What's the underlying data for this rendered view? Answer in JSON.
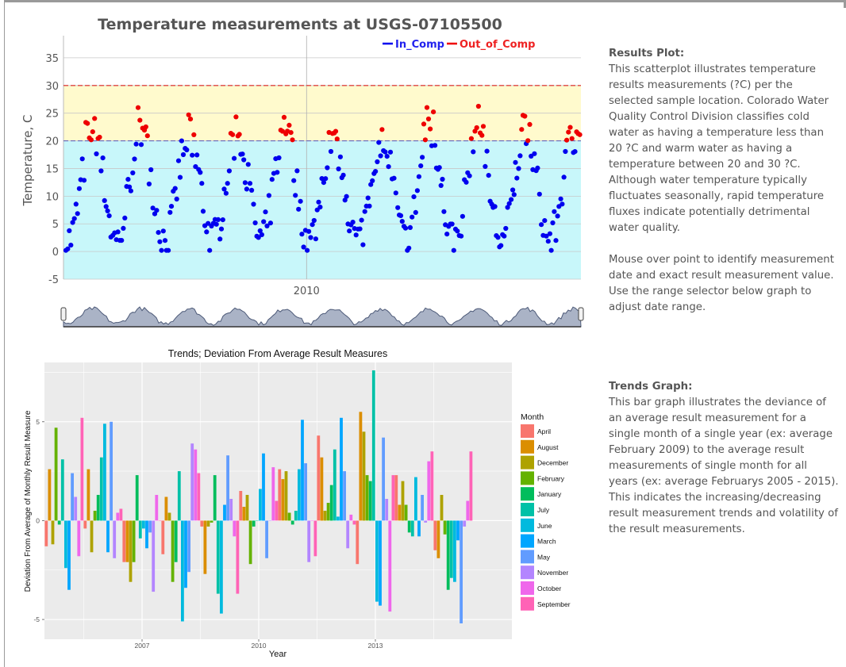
{
  "colors": {
    "in_comp": "#0000ee",
    "out_of_comp": "#ee0000",
    "warm_band": "#fffacd",
    "cold_band": "#c8f7fa",
    "threshold_line_red": "#dd2222",
    "threshold_line_blue": "#6666bb",
    "trend_panel_bg": "#ebebeb",
    "months": {
      "April": "#f8766d",
      "August": "#db8e00",
      "December": "#aea200",
      "February": "#64b200",
      "January": "#00bd5c",
      "July": "#00c1a7",
      "June": "#00bade",
      "March": "#00a6ff",
      "May": "#619cff",
      "November": "#b385ff",
      "October": "#ef67eb",
      "September": "#ff63b6"
    }
  },
  "results_panel": {
    "heading": "Results Plot:",
    "paragraph1": "This scatterplot illustrates temperature results measurements (?C) per the selected sample location. Colorado Water Quality Control Division classifies cold water as having a temperature less than 20 ?C and warm water as having a temperature between 20 and 30 ?C. Although water temperature typically fluctuates seasonally, rapid temperature fluxes indicate potentially detrimental water quality.",
    "paragraph2": "Mouse over point to identify measurement date and exact result measurement value. Use the range selector below graph to adjust date range."
  },
  "trends_panel": {
    "heading": "Trends Graph:",
    "paragraph1": "This bar graph illustrates the deviance of an average result measurement for a single month of a single year (ex: average February 2009) to the average result measurements of single month for all years (ex: average Februarys 2005 - 2015). This indicates the increasing/decreasing result measurement trends and volatility of the result measurements."
  },
  "chart_data": [
    {
      "type": "scatter",
      "title": "Temperature measurements at USGS-07105500",
      "ylabel": "Temperature, C",
      "xlabel": "",
      "ylim": [
        -5,
        39
      ],
      "yticks": [
        -5,
        0,
        5,
        10,
        15,
        20,
        25,
        30,
        35
      ],
      "xticks": [
        {
          "label": "2010",
          "value": 2010.0
        }
      ],
      "xrange": [
        2004.95,
        2015.7
      ],
      "legend": [
        "In_Comp",
        "Out_of_Comp"
      ],
      "legend_position": "top-right",
      "thresholds": [
        20,
        30
      ],
      "range_selector": true,
      "series": [
        {
          "name": "In_Comp"
        },
        {
          "name": "Out_of_Comp"
        }
      ]
    },
    {
      "type": "bar",
      "title": "Trends; Deviation From Average Result Measures",
      "xlabel": "Year",
      "ylabel": "Deviation From Average of Monthly Result Measure",
      "ylim": [
        -6,
        8
      ],
      "yticks": [
        -5,
        0,
        5
      ],
      "xticks": [
        {
          "label": "2007",
          "value": 2007
        },
        {
          "label": "2010",
          "value": 2010
        },
        {
          "label": "2013",
          "value": 2013
        }
      ],
      "legend_title": "Month",
      "legend_position": "right",
      "month_order": [
        "April",
        "August",
        "December",
        "February",
        "January",
        "July",
        "June",
        "March",
        "May",
        "November",
        "October",
        "September"
      ],
      "groups": [
        {
          "year": 2005.0,
          "values": {
            "April": -1.3,
            "August": 2.6,
            "December": -1.2,
            "February": 4.7,
            "January": -0.2,
            "July": 3.1,
            "June": -2.4,
            "March": -3.5,
            "May": 2.4,
            "November": 1.2,
            "October": -1.8,
            "September": 5.2
          }
        },
        {
          "year": 2006.0,
          "values": {
            "April": -0.4,
            "August": 2.6,
            "December": -1.6,
            "February": 0.5,
            "January": 1.3,
            "July": 3.2,
            "June": 4.9,
            "March": -1.6,
            "May": 5.0,
            "November": -1.9,
            "October": 0.4,
            "September": 0.6
          }
        },
        {
          "year": 2007.0,
          "values": {
            "April": -2.1,
            "August": -2.1,
            "December": -3.1,
            "February": -2.1,
            "January": 2.3,
            "July": -0.9,
            "June": -0.4,
            "March": -1.4,
            "May": -0.6,
            "November": -3.6,
            "October": 1.3,
            "September": 0.0
          }
        },
        {
          "year": 2008.0,
          "values": {
            "April": -1.7,
            "August": 1.2,
            "December": 0.4,
            "February": -3.1,
            "January": -2.1,
            "July": 2.5,
            "June": -5.1,
            "March": -3.4,
            "May": -2.6,
            "November": 3.9,
            "October": 3.6,
            "September": 2.4
          }
        },
        {
          "year": 2009.0,
          "values": {
            "April": -0.3,
            "August": -2.7,
            "December": -0.3,
            "February": -0.1,
            "January": 2.3,
            "July": -3.7,
            "June": -4.7,
            "March": 0.8,
            "May": 3.3,
            "November": 1.1,
            "October": -0.8,
            "September": -3.7
          }
        },
        {
          "year": 2010.0,
          "values": {
            "April": 1.5,
            "August": 0.7,
            "December": 1.3,
            "February": -2.2,
            "January": -0.3,
            "July": 0.0,
            "June": 1.6,
            "March": 3.4,
            "May": -1.9,
            "November": 0.0,
            "October": 2.7,
            "September": 1.0
          }
        },
        {
          "year": 2011.0,
          "values": {
            "April": 2.6,
            "August": 2.1,
            "December": 2.5,
            "February": 0.4,
            "January": -0.2,
            "July": 0.5,
            "June": 2.6,
            "March": 5.1,
            "May": 2.9,
            "November": -2.1,
            "October": 0.0,
            "September": -1.8
          }
        },
        {
          "year": 2012.0,
          "values": {
            "April": 4.3,
            "August": 3.2,
            "December": 0.5,
            "February": 0.9,
            "January": 1.8,
            "July": 3.6,
            "June": 0.2,
            "March": 5.2,
            "May": 2.5,
            "November": -1.4,
            "October": 0.3,
            "September": -0.2
          }
        },
        {
          "year": 2013.0,
          "values": {
            "April": -2.2,
            "August": 5.5,
            "December": 4.5,
            "February": 2.3,
            "January": 2.0,
            "July": 7.6,
            "June": -4.1,
            "March": -4.3,
            "May": 4.2,
            "November": 1.1,
            "October": -4.6,
            "September": 2.3
          }
        },
        {
          "year": 2014.0,
          "values": {
            "April": 2.3,
            "August": 0.8,
            "December": 2.0,
            "February": 0.8,
            "January": -0.6,
            "July": -0.8,
            "June": 2.2,
            "March": -0.8,
            "May": 1.3,
            "November": -0.1,
            "October": 3.0,
            "September": 3.5
          }
        },
        {
          "year": 2015.0,
          "values": {
            "April": -1.5,
            "August": -1.9,
            "December": 1.3,
            "February": -0.7,
            "January": -3.5,
            "July": -2.9,
            "June": -3.1,
            "March": -1.0,
            "May": -5.2,
            "November": -0.3,
            "October": 1.0,
            "September": 3.5
          }
        }
      ]
    }
  ]
}
